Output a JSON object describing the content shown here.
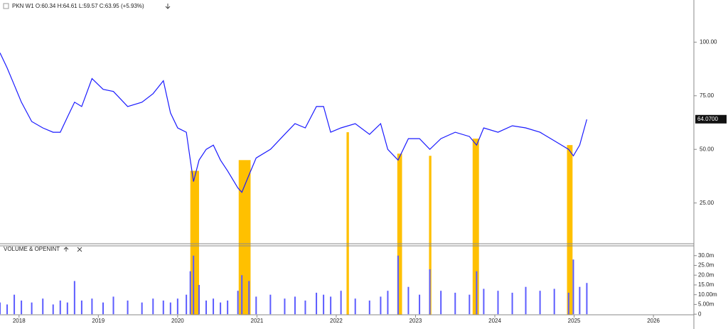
{
  "chart_data": [
    {
      "type": "line",
      "title": "PKN W1 O:60.34 H:64.61 L:59.57 C:63.95 (+5.93%)",
      "x": [
        2017.76,
        2017.85,
        2017.94,
        2018.03,
        2018.16,
        2018.3,
        2018.43,
        2018.52,
        2018.61,
        2018.7,
        2018.79,
        2018.92,
        2019.06,
        2019.19,
        2019.37,
        2019.55,
        2019.69,
        2019.82,
        2019.91,
        2020.0,
        2020.11,
        2020.16,
        2020.2,
        2020.27,
        2020.36,
        2020.45,
        2020.54,
        2020.63,
        2020.76,
        2020.81,
        2020.9,
        2020.99,
        2021.17,
        2021.35,
        2021.48,
        2021.61,
        2021.75,
        2021.84,
        2021.93,
        2022.06,
        2022.24,
        2022.42,
        2022.56,
        2022.65,
        2022.78,
        2022.91,
        2023.05,
        2023.18,
        2023.32,
        2023.5,
        2023.68,
        2023.77,
        2023.86,
        2024.04,
        2024.22,
        2024.39,
        2024.57,
        2024.75,
        2024.93,
        2024.99,
        2025.07,
        2025.16
      ],
      "values": [
        95,
        88,
        80,
        72,
        63,
        60,
        58,
        58,
        65,
        72,
        70,
        83,
        78,
        77,
        70,
        72,
        76,
        82,
        67,
        60,
        58,
        45,
        35,
        45,
        50,
        52,
        45,
        40,
        32,
        30,
        38,
        46,
        50,
        57,
        62,
        60,
        70,
        70,
        58,
        60,
        62,
        57,
        62,
        50,
        45,
        55,
        55,
        50,
        55,
        58,
        56,
        52,
        60,
        58,
        61,
        60,
        58,
        54,
        50,
        47,
        52,
        64
      ],
      "color": "#1a1aff",
      "xlim": [
        2017.76,
        2026.51
      ],
      "xticks": [
        2018,
        2019,
        2020,
        2021,
        2022,
        2023,
        2024,
        2025,
        2026
      ],
      "ylim": [
        6,
        118
      ],
      "yticks": [
        {
          "value": 25,
          "label": "25.00"
        },
        {
          "value": 50,
          "label": "50.00"
        },
        {
          "value": 75,
          "label": "75.00"
        },
        {
          "value": 100,
          "label": "100.00"
        }
      ],
      "last_price": {
        "value": 64.07,
        "label": "64.0700"
      },
      "highlights": [
        {
          "x": [
            2020.16,
            2020.27
          ],
          "top": 40
        },
        {
          "x": [
            2020.77,
            2020.92
          ],
          "top": 45
        },
        {
          "x": [
            2022.13,
            2022.16
          ],
          "top": 58
        },
        {
          "x": [
            2022.77,
            2022.83
          ],
          "top": 48
        },
        {
          "x": [
            2023.17,
            2023.2
          ],
          "top": 47
        },
        {
          "x": [
            2023.72,
            2023.8
          ],
          "top": 55
        },
        {
          "x": [
            2024.91,
            2024.98
          ],
          "top": 52
        }
      ],
      "highlight_color": "#ffc000"
    },
    {
      "type": "bar",
      "title": "VOLUME & OPENINT",
      "x": [
        2017.76,
        2017.85,
        2017.94,
        2018.03,
        2018.16,
        2018.3,
        2018.43,
        2018.52,
        2018.61,
        2018.7,
        2018.79,
        2018.92,
        2019.06,
        2019.19,
        2019.37,
        2019.55,
        2019.69,
        2019.82,
        2019.91,
        2020.0,
        2020.11,
        2020.16,
        2020.2,
        2020.27,
        2020.36,
        2020.45,
        2020.54,
        2020.63,
        2020.76,
        2020.81,
        2020.9,
        2020.99,
        2021.17,
        2021.35,
        2021.48,
        2021.61,
        2021.75,
        2021.84,
        2021.93,
        2022.06,
        2022.24,
        2022.42,
        2022.56,
        2022.65,
        2022.78,
        2022.91,
        2023.05,
        2023.18,
        2023.32,
        2023.5,
        2023.68,
        2023.77,
        2023.86,
        2024.04,
        2024.22,
        2024.39,
        2024.57,
        2024.75,
        2024.93,
        2024.99,
        2025.07,
        2025.16
      ],
      "values": [
        6,
        5,
        10,
        7,
        6,
        8,
        5,
        7,
        6,
        17,
        7,
        8,
        6,
        9,
        7,
        6,
        8,
        7,
        6,
        8,
        10,
        22,
        30,
        15,
        7,
        8,
        6,
        7,
        12,
        20,
        17,
        9,
        10,
        8,
        9,
        7,
        11,
        10,
        9,
        12,
        8,
        7,
        9,
        12,
        30,
        14,
        10,
        23,
        12,
        11,
        10,
        22,
        13,
        12,
        11,
        14,
        12,
        13,
        11,
        28,
        14,
        16
      ],
      "color": "#5c5cff",
      "ylim": [
        -0.3,
        35
      ],
      "yticks": [
        0,
        {
          "value": 5,
          "label": "5.00m"
        },
        {
          "value": 10,
          "label": "10.00m"
        },
        {
          "value": 15,
          "label": "15.0m"
        },
        {
          "value": 20,
          "label": "20.0m"
        },
        {
          "value": 25,
          "label": "25.0m"
        },
        {
          "value": 30,
          "label": "30.0m"
        }
      ]
    }
  ]
}
